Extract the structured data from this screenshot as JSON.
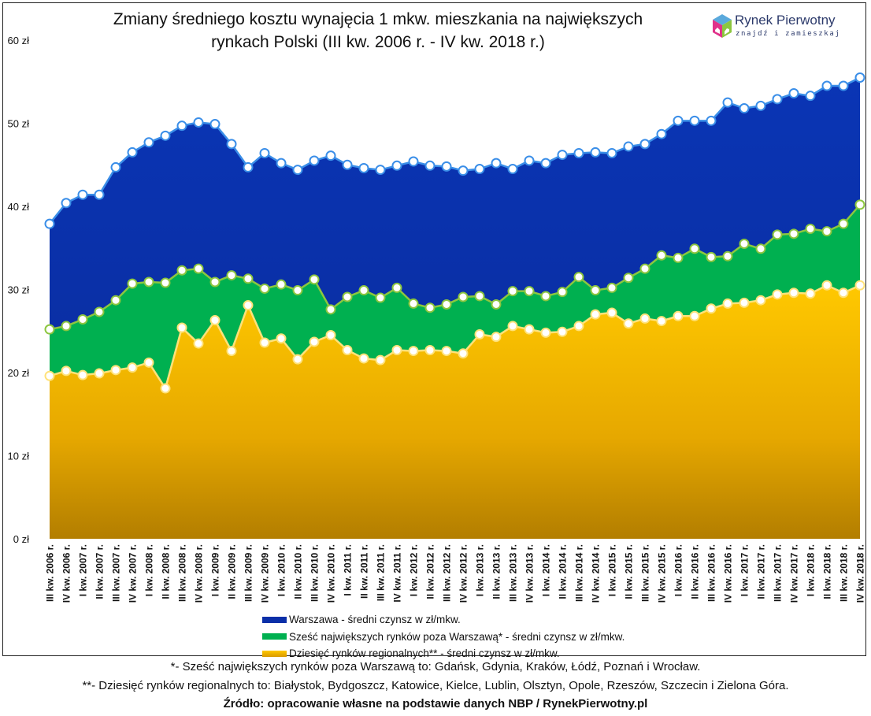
{
  "logo": {
    "name": "Rynek Pierwotny",
    "tagline": "znajdź i zamieszkaj"
  },
  "footnotes": {
    "note1": "*- Sześć największych rynków poza Warszawą to: Gdańsk, Gdynia, Kraków, Łódź, Poznań i Wrocław.",
    "note2": "**- Dziesięć rynków regionalnych to: Białystok, Bydgoszcz, Katowice, Kielce, Lublin, Olsztyn, Opole, Rzeszów, Szczecin i Zielona Góra.",
    "source": "Źródło: opracowanie własne na podstawie danych NBP / RynekPierwotny.pl"
  },
  "colors": {
    "warszawa": "#0a2fa8",
    "szesc": "#00b050",
    "dziesiec": "#f5c000",
    "warszawa_line": "#3a8ee8",
    "szesc_line": "#8cc63f",
    "dziesiec_line": "#ffe27a"
  },
  "chart_data": {
    "type": "area",
    "title_line1": "Zmiany średniego kosztu wynajęcia 1 mkw. mieszkania na największych",
    "title_line2": "rynkach Polski (III kw. 2006 r. - IV kw. 2018 r.)",
    "ylim": [
      0,
      60
    ],
    "yticks": [
      "0 zł",
      "10 zł",
      "20 zł",
      "30 zł",
      "40 zł",
      "50 zł",
      "60 zł"
    ],
    "ytick_values": [
      0,
      10,
      20,
      30,
      40,
      50,
      60
    ],
    "grid": false,
    "legend_position": "bottom",
    "categories": [
      "III kw. 2006 r.",
      "IV kw. 2006 r.",
      "I kw. 2007 r.",
      "II kw. 2007 r.",
      "III kw. 2007 r.",
      "IV kw. 2007 r.",
      "I kw. 2008 r.",
      "II kw. 2008 r.",
      "III kw. 2008 r.",
      "IV kw. 2008 r.",
      "I kw. 2009 r.",
      "II kw. 2009 r.",
      "III kw. 2009 r.",
      "IV kw. 2009 r.",
      "I kw. 2010 r.",
      "II kw. 2010 r.",
      "III kw. 2010 r.",
      "IV kw. 2010 r.",
      "I kw. 2011 r.",
      "II kw. 2011 r.",
      "III kw. 2011 r.",
      "IV kw. 2011 r.",
      "I kw. 2012 r.",
      "II kw. 2012 r.",
      "III kw. 2012 r.",
      "IV kw. 2012 r.",
      "I kw. 2013 r.",
      "II kw. 2013 r.",
      "III kw. 2013 r.",
      "IV kw. 2013 r.",
      "I kw. 2014 r.",
      "II kw. 2014 r.",
      "III kw. 2014 r.",
      "IV kw. 2014 r.",
      "I kw. 2015 r.",
      "II kw. 2015 r.",
      "III kw. 2015 r.",
      "IV kw. 2015 r.",
      "I kw. 2016 r.",
      "II kw. 2016 r.",
      "III kw. 2016 r.",
      "IV kw. 2016 r.",
      "I kw. 2017 r.",
      "II kw. 2017 r.",
      "III kw. 2017 r.",
      "IV kw. 2017 r.",
      "I kw. 2018 r.",
      "II kw. 2018 r.",
      "III kw. 2018 r.",
      "IV kw. 2018 r."
    ],
    "series": [
      {
        "name": "Warszawa - średni czynsz w zł/mkw.",
        "key": "warszawa",
        "values": [
          37.9,
          40.4,
          41.4,
          41.4,
          44.7,
          46.5,
          47.7,
          48.5,
          49.7,
          50.1,
          49.9,
          47.5,
          44.7,
          46.4,
          45.2,
          44.4,
          45.5,
          46.1,
          45.0,
          44.6,
          44.4,
          44.9,
          45.4,
          44.9,
          44.8,
          44.3,
          44.5,
          45.2,
          44.5,
          45.5,
          45.2,
          46.2,
          46.4,
          46.5,
          46.4,
          47.2,
          47.5,
          48.7,
          50.3,
          50.3,
          50.3,
          52.5,
          51.8,
          52.1,
          52.9,
          53.6,
          53.3,
          54.5,
          54.5,
          55.5
        ]
      },
      {
        "name": "Sześć największych rynków poza Warszawą* - średni czynsz w zł/mkw.",
        "key": "szesc",
        "values": [
          25.2,
          25.6,
          26.4,
          27.3,
          28.7,
          30.7,
          30.9,
          30.8,
          32.3,
          32.5,
          30.9,
          31.7,
          31.3,
          30.1,
          30.6,
          29.9,
          31.2,
          27.6,
          29.1,
          29.9,
          29.0,
          30.2,
          28.3,
          27.8,
          28.2,
          29.1,
          29.2,
          28.2,
          29.8,
          29.8,
          29.2,
          29.7,
          31.5,
          29.9,
          30.2,
          31.4,
          32.5,
          34.1,
          33.8,
          34.9,
          33.9,
          34.0,
          35.5,
          34.9,
          36.6,
          36.7,
          37.3,
          37.0,
          37.9,
          40.2
        ]
      },
      {
        "name": "Dziesięć rynków regionalnych** - średni czynsz w zł/mkw.",
        "key": "dziesiec",
        "values": [
          19.6,
          20.2,
          19.7,
          19.9,
          20.3,
          20.6,
          21.2,
          18.1,
          25.4,
          23.5,
          26.3,
          22.6,
          28.1,
          23.6,
          24.1,
          21.6,
          23.7,
          24.5,
          22.7,
          21.7,
          21.5,
          22.7,
          22.6,
          22.7,
          22.6,
          22.3,
          24.6,
          24.3,
          25.6,
          25.2,
          24.8,
          24.9,
          25.6,
          27.0,
          27.2,
          25.9,
          26.5,
          26.2,
          26.8,
          26.8,
          27.7,
          28.3,
          28.4,
          28.7,
          29.4,
          29.6,
          29.5,
          30.5,
          29.6,
          30.5
        ]
      }
    ]
  }
}
